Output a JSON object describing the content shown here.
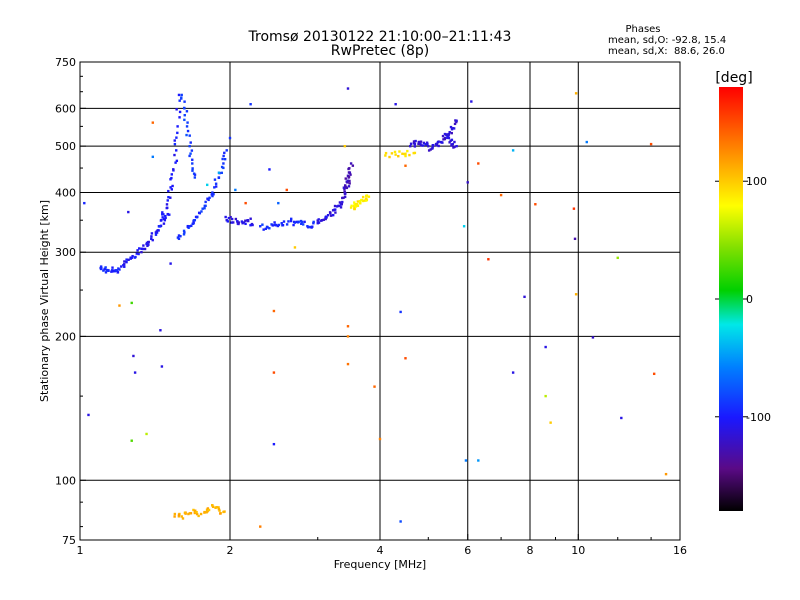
{
  "chart_data": {
    "type": "scatter",
    "title": "Tromsø 20130122 21:10:00–21:11:43",
    "subtitle": "RwPretec (8p)",
    "stats": {
      "heading": "Phases",
      "line_o": "mean, sd,O: -92.8, 15.4",
      "line_x": "mean, sd,X:  88.6, 26.0"
    },
    "xlabel": "Frequency [MHz]",
    "ylabel": "Stationary phase Virtual Height [km]",
    "x_scale": "log",
    "y_scale": "log",
    "xlim": [
      1,
      16
    ],
    "ylim": [
      75,
      750
    ],
    "x_ticks": [
      1,
      2,
      4,
      6,
      8,
      10,
      16
    ],
    "x_tick_labels": [
      "1",
      "2",
      "4",
      "6",
      "8",
      "10",
      "16"
    ],
    "x_gridlines": [
      2,
      4,
      6,
      8,
      10
    ],
    "y_ticks": [
      75,
      100,
      200,
      300,
      400,
      500,
      600,
      750
    ],
    "y_tick_labels": [
      "75",
      "100",
      "200",
      "300",
      "400",
      "500",
      "600",
      "750"
    ],
    "y_gridlines": [
      100,
      200,
      300,
      400,
      500,
      600
    ],
    "grid": true,
    "colorbar": {
      "label": "[deg]",
      "range": [
        -180,
        180
      ],
      "ticks": [
        100,
        0,
        -100
      ],
      "tick_labels": [
        "100",
        "0",
        "-100"
      ]
    },
    "traces": [
      {
        "x": [
          1.1,
          1.12,
          1.14,
          1.16,
          1.18,
          1.2
        ],
        "y": [
          278,
          276,
          275,
          275,
          275,
          276
        ],
        "phase": -95
      },
      {
        "x": [
          1.21,
          1.24,
          1.27,
          1.3,
          1.33,
          1.36,
          1.39,
          1.42,
          1.45,
          1.48,
          1.5
        ],
        "y": [
          280,
          286,
          292,
          298,
          305,
          312,
          320,
          330,
          340,
          350,
          360
        ],
        "phase": -105
      },
      {
        "x": [
          1.44,
          1.47,
          1.5,
          1.52,
          1.54,
          1.56,
          1.57,
          1.58
        ],
        "y": [
          340,
          360,
          385,
          410,
          445,
          490,
          550,
          640
        ],
        "phase": -100
      },
      {
        "x": [
          1.6,
          1.62,
          1.64,
          1.66,
          1.68,
          1.7
        ],
        "y": [
          640,
          600,
          550,
          500,
          460,
          430
        ],
        "phase": -85
      },
      {
        "x": [
          1.58,
          1.62,
          1.66,
          1.7,
          1.74,
          1.78,
          1.82,
          1.86,
          1.9,
          1.94,
          1.97
        ],
        "y": [
          320,
          330,
          340,
          350,
          362,
          375,
          390,
          410,
          430,
          460,
          490
        ],
        "phase": -90
      },
      {
        "x": [
          1.97,
          2.02,
          2.07,
          2.12,
          2.17,
          2.22
        ],
        "y": [
          350,
          352,
          348,
          345,
          350,
          342
        ],
        "phase": -110
      },
      {
        "x": [
          2.3,
          2.38,
          2.46,
          2.54,
          2.62,
          2.7,
          2.78,
          2.86,
          2.94
        ],
        "y": [
          340,
          338,
          342,
          345,
          348,
          346,
          344,
          340,
          345
        ],
        "phase": -92
      },
      {
        "x": [
          3.0,
          3.06,
          3.12,
          3.18,
          3.24,
          3.3,
          3.36
        ],
        "y": [
          345,
          350,
          356,
          362,
          368,
          375,
          382
        ],
        "phase": -112
      },
      {
        "x": [
          3.38,
          3.4,
          3.42,
          3.44,
          3.46,
          3.48,
          3.5
        ],
        "y": [
          390,
          400,
          410,
          420,
          430,
          440,
          460
        ],
        "phase": -125
      },
      {
        "x": [
          3.5,
          3.55,
          3.6,
          3.65,
          3.7,
          3.75,
          3.8
        ],
        "y": [
          372,
          375,
          378,
          380,
          384,
          388,
          392
        ],
        "phase": 85
      },
      {
        "x": [
          4.6,
          4.7,
          4.8,
          4.9,
          5.0,
          5.1,
          5.2,
          5.3,
          5.4,
          5.5,
          5.6,
          5.7
        ],
        "y": [
          500,
          505,
          510,
          508,
          500,
          495,
          502,
          510,
          520,
          530,
          545,
          565
        ],
        "phase": -115
      },
      {
        "x": [
          5.4,
          5.5,
          5.6,
          5.7
        ],
        "y": [
          530,
          520,
          505,
          500
        ],
        "phase": -110
      },
      {
        "x": [
          4.1,
          4.3,
          4.5,
          4.7
        ],
        "y": [
          478,
          480,
          482,
          484
        ],
        "phase": 92
      },
      {
        "x": [
          1.55,
          1.6,
          1.65,
          1.7,
          1.75,
          1.8,
          1.85,
          1.9,
          1.95
        ],
        "y": [
          85,
          84,
          85,
          86,
          85,
          86,
          88,
          87,
          86
        ],
        "phase": 110
      }
    ],
    "scatter_points": [
      {
        "x": 1.02,
        "y": 380,
        "phase": -95
      },
      {
        "x": 1.04,
        "y": 137,
        "phase": -110
      },
      {
        "x": 1.2,
        "y": 232,
        "phase": 120
      },
      {
        "x": 1.25,
        "y": 364,
        "phase": -110
      },
      {
        "x": 1.27,
        "y": 121,
        "phase": 30
      },
      {
        "x": 1.27,
        "y": 235,
        "phase": 25
      },
      {
        "x": 1.28,
        "y": 182,
        "phase": -115
      },
      {
        "x": 1.29,
        "y": 168,
        "phase": -110
      },
      {
        "x": 1.36,
        "y": 125,
        "phase": 60
      },
      {
        "x": 1.4,
        "y": 475,
        "phase": -60
      },
      {
        "x": 1.4,
        "y": 560,
        "phase": 140
      },
      {
        "x": 1.45,
        "y": 206,
        "phase": -112
      },
      {
        "x": 1.46,
        "y": 173,
        "phase": -110
      },
      {
        "x": 1.52,
        "y": 284,
        "phase": -108
      },
      {
        "x": 1.8,
        "y": 415,
        "phase": -30
      },
      {
        "x": 1.9,
        "y": 440,
        "phase": -45
      },
      {
        "x": 2.0,
        "y": 520,
        "phase": -90
      },
      {
        "x": 2.05,
        "y": 405,
        "phase": -60
      },
      {
        "x": 2.15,
        "y": 380,
        "phase": 150
      },
      {
        "x": 2.2,
        "y": 612,
        "phase": -90
      },
      {
        "x": 2.3,
        "y": 80,
        "phase": 130
      },
      {
        "x": 2.4,
        "y": 447,
        "phase": -100
      },
      {
        "x": 2.45,
        "y": 226,
        "phase": 140
      },
      {
        "x": 2.45,
        "y": 168,
        "phase": 150
      },
      {
        "x": 2.45,
        "y": 119,
        "phase": -100
      },
      {
        "x": 2.5,
        "y": 380,
        "phase": -70
      },
      {
        "x": 2.6,
        "y": 405,
        "phase": 150
      },
      {
        "x": 2.7,
        "y": 307,
        "phase": 100
      },
      {
        "x": 3.45,
        "y": 660,
        "phase": -115
      },
      {
        "x": 3.45,
        "y": 210,
        "phase": 140
      },
      {
        "x": 3.45,
        "y": 200,
        "phase": 130
      },
      {
        "x": 3.45,
        "y": 175,
        "phase": 135
      },
      {
        "x": 3.4,
        "y": 500,
        "phase": 100
      },
      {
        "x": 3.9,
        "y": 157,
        "phase": 140
      },
      {
        "x": 4.0,
        "y": 122,
        "phase": 130
      },
      {
        "x": 4.3,
        "y": 612,
        "phase": -110
      },
      {
        "x": 4.4,
        "y": 225,
        "phase": -90
      },
      {
        "x": 4.4,
        "y": 82,
        "phase": -80
      },
      {
        "x": 4.5,
        "y": 180,
        "phase": 150
      },
      {
        "x": 4.5,
        "y": 455,
        "phase": 140
      },
      {
        "x": 5.9,
        "y": 340,
        "phase": -30
      },
      {
        "x": 5.95,
        "y": 110,
        "phase": -60
      },
      {
        "x": 6.0,
        "y": 420,
        "phase": -120
      },
      {
        "x": 6.1,
        "y": 620,
        "phase": -110
      },
      {
        "x": 6.3,
        "y": 110,
        "phase": -50
      },
      {
        "x": 6.3,
        "y": 460,
        "phase": 150
      },
      {
        "x": 6.6,
        "y": 290,
        "phase": 160
      },
      {
        "x": 7.0,
        "y": 395,
        "phase": 140
      },
      {
        "x": 7.4,
        "y": 490,
        "phase": -40
      },
      {
        "x": 7.4,
        "y": 168,
        "phase": -110
      },
      {
        "x": 7.8,
        "y": 242,
        "phase": -115
      },
      {
        "x": 8.2,
        "y": 378,
        "phase": 150
      },
      {
        "x": 8.6,
        "y": 190,
        "phase": -110
      },
      {
        "x": 8.6,
        "y": 150,
        "phase": 60
      },
      {
        "x": 8.8,
        "y": 132,
        "phase": 100
      },
      {
        "x": 9.8,
        "y": 370,
        "phase": 160
      },
      {
        "x": 9.85,
        "y": 320,
        "phase": -130
      },
      {
        "x": 9.9,
        "y": 245,
        "phase": 110
      },
      {
        "x": 9.9,
        "y": 645,
        "phase": 110
      },
      {
        "x": 10.4,
        "y": 510,
        "phase": -60
      },
      {
        "x": 10.7,
        "y": 199,
        "phase": -120
      },
      {
        "x": 12.0,
        "y": 292,
        "phase": 50
      },
      {
        "x": 12.2,
        "y": 135,
        "phase": -110
      },
      {
        "x": 14.0,
        "y": 505,
        "phase": 150
      },
      {
        "x": 14.2,
        "y": 167,
        "phase": 150
      },
      {
        "x": 15.0,
        "y": 103,
        "phase": 120
      }
    ]
  }
}
